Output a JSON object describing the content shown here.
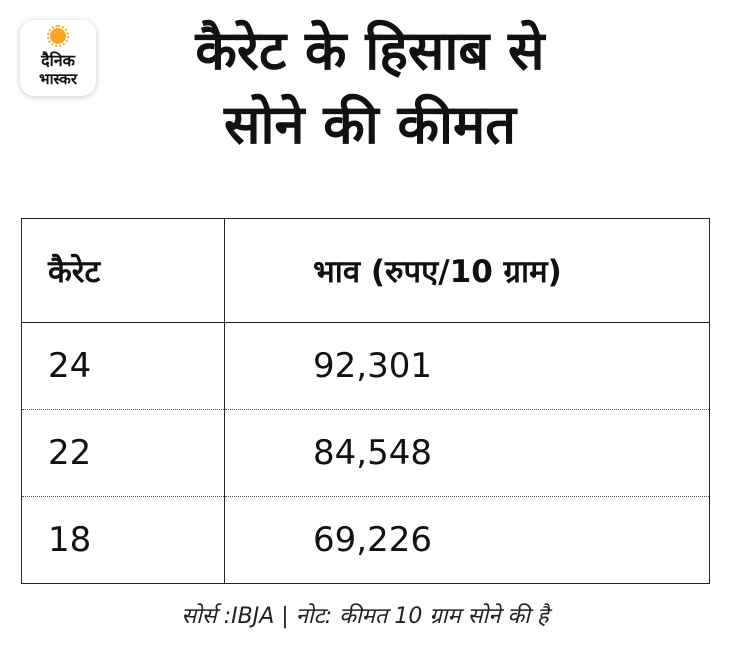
{
  "logo": {
    "line1": "दैनिक",
    "line2": "भास्कर",
    "accent_color": "#f5a623"
  },
  "title": {
    "line1": "कैरेट के हिसाब से",
    "line2": "सोने की कीमत"
  },
  "table": {
    "headers": [
      "कैरेट",
      "भाव (रुपए/10 ग्राम)"
    ],
    "rows": [
      {
        "karat": "24",
        "price": "92,301"
      },
      {
        "karat": "22",
        "price": "84,548"
      },
      {
        "karat": "18",
        "price": "69,226"
      }
    ]
  },
  "footnote": "सोर्स :IBJA | नोट: कीमत 10 ग्राम सोने की है"
}
